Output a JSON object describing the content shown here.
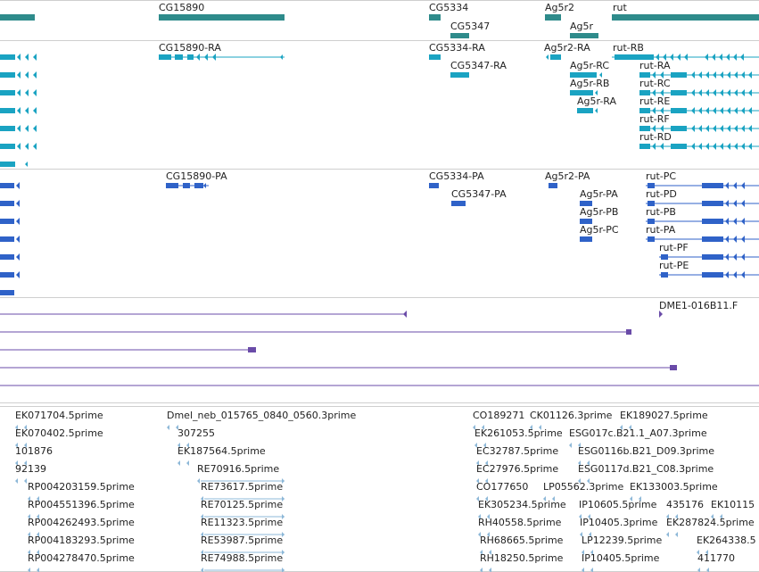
{
  "colors": {
    "gene": "#2e8b8b",
    "transcript": "#1aa3c2",
    "protein": "#2f62c8",
    "cdna": "#6a4ba8",
    "est": "#8db8d8",
    "divider": "#cfcfcf",
    "text": "#222222"
  },
  "tracks": {
    "genes": {
      "labels": [
        "CG15890",
        "CG5334",
        "CG5347",
        "Ag5r2",
        "Ag5r",
        "rut"
      ]
    },
    "transcripts": {
      "labels": [
        "CG15890-RA",
        "CG5334-RA",
        "CG5347-RA",
        "Ag5r2-RA",
        "Ag5r-RC",
        "Ag5r-RB",
        "Ag5r-RA",
        "rut-RB",
        "rut-RA",
        "rut-RC",
        "rut-RE",
        "rut-RF",
        "rut-RD"
      ]
    },
    "proteins": {
      "labels": [
        "CG15890-PA",
        "CG5334-PA",
        "CG5347-PA",
        "Ag5r2-PA",
        "Ag5r-PA",
        "Ag5r-PB",
        "Ag5r-PC",
        "rut-PC",
        "rut-PD",
        "rut-PB",
        "rut-PA",
        "rut-PF",
        "rut-PE"
      ]
    },
    "cdna": {
      "labels": [
        "DME1-016B11.F"
      ]
    },
    "ests": {
      "labels": [
        "EK071704.5prime",
        "EK070402.5prime",
        "101876",
        "92139",
        "RP004203159.5prime",
        "RP004551396.5prime",
        "RP004262493.5prime",
        "RP004183293.5prime",
        "RP004278470.5prime",
        "Dmel_neb_015765_0840_0560.3prime",
        "307255",
        "EK187564.5prime",
        "RE70916.5prime",
        "RE73617.5prime",
        "RE70125.5prime",
        "RE11323.5prime",
        "RE53987.5prime",
        "RE74988.5prime",
        "CO189271",
        "CK01126.3prime",
        "EK189027.5prime",
        "EK261053.5prime",
        "ESG017c.B21.1_A07.3prime",
        "EC32787.5prime",
        "ESG0116b.B21_D09.3prime",
        "EC27976.5prime",
        "ESG0117d.B21_C08.3prime",
        "CO177650",
        "LP05562.3prime",
        "EK133003.5prime",
        "EK305234.5prime",
        "IP10605.5prime",
        "435176",
        "EK10115",
        "RH40558.5prime",
        "IP10405.3prime",
        "EK287824.5prime",
        "RH68665.5prime",
        "LP12239.5prime",
        "EK264338.5",
        "RH18250.5prime",
        "IP10405.5prime",
        "411770"
      ]
    }
  }
}
